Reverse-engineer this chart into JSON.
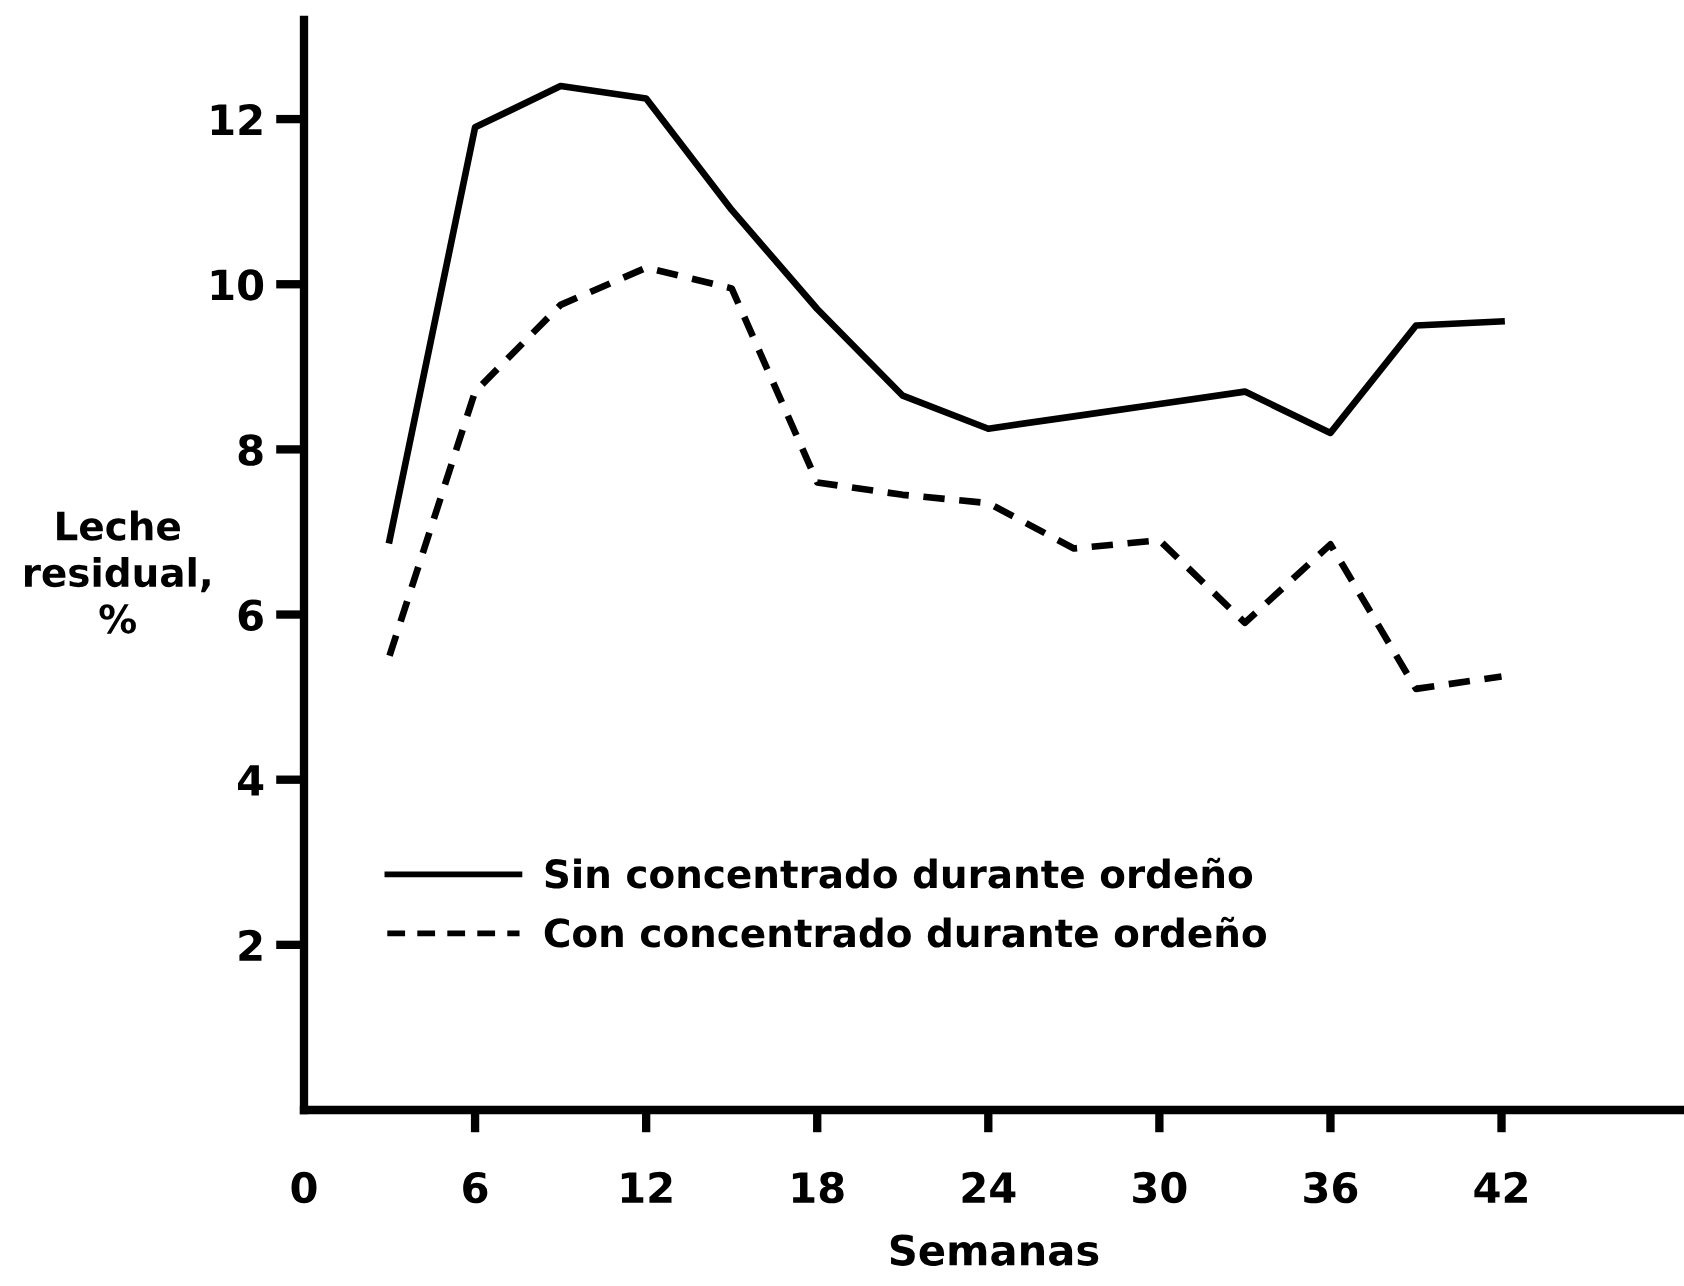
{
  "chart_data": {
    "type": "line",
    "xlabel": "Semanas",
    "ylabel": "Leche\nresidual,\n%",
    "x": [
      3,
      6,
      9,
      12,
      15,
      18,
      21,
      24,
      27,
      30,
      33,
      36,
      39,
      42
    ],
    "series": [
      {
        "name": "Sin concentrado durante ordeño",
        "color": "#000000",
        "line_style": "solid",
        "values": [
          6.9,
          11.9,
          12.4,
          12.25,
          10.9,
          9.7,
          8.65,
          8.25,
          8.4,
          8.55,
          8.7,
          8.2,
          9.5,
          9.55
        ]
      },
      {
        "name": "Con concentrado durante ordeño",
        "color": "#000000",
        "line_style": "dashed",
        "values": [
          5.5,
          8.7,
          9.75,
          10.2,
          9.95,
          7.6,
          7.45,
          7.35,
          6.8,
          6.9,
          5.9,
          6.85,
          5.1,
          5.25
        ]
      }
    ],
    "xlim": [
      0,
      48.4
    ],
    "ylim": [
      0,
      13.2
    ],
    "xticks": [
      {
        "value": 0,
        "label": "0"
      },
      6,
      12,
      18,
      24,
      30,
      36,
      42
    ],
    "yticks": [
      2,
      4,
      6,
      8,
      10,
      12
    ],
    "legend": "lower left"
  }
}
